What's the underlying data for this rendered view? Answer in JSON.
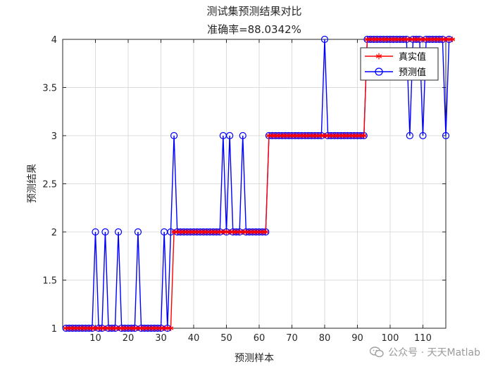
{
  "chart_data": {
    "type": "line",
    "title": "测试集预测结果对比",
    "subtitle": "准确率=88.0342%",
    "xlabel": "预测样本",
    "ylabel": "预测结果",
    "xlim": [
      0,
      117
    ],
    "ylim": [
      1,
      4
    ],
    "x_ticks": [
      10,
      20,
      30,
      40,
      50,
      60,
      70,
      80,
      90,
      100,
      110
    ],
    "y_ticks": [
      1,
      1.5,
      2,
      2.5,
      3,
      3.5,
      4
    ],
    "y_tick_labels": [
      "1",
      "1.5",
      "2",
      "2.5",
      "3",
      "3.5",
      "4"
    ],
    "grid": true,
    "legend_position": "top-right",
    "series": [
      {
        "name": "真实值",
        "color": "#ff0000",
        "marker": "asterisk",
        "values": [
          1,
          1,
          1,
          1,
          1,
          1,
          1,
          1,
          1,
          1,
          1,
          1,
          1,
          1,
          1,
          1,
          1,
          1,
          1,
          1,
          1,
          1,
          1,
          1,
          1,
          1,
          1,
          1,
          1,
          1,
          1,
          1,
          1,
          2,
          2,
          2,
          2,
          2,
          2,
          2,
          2,
          2,
          2,
          2,
          2,
          2,
          2,
          2,
          2,
          2,
          2,
          2,
          2,
          2,
          2,
          2,
          2,
          2,
          2,
          2,
          2,
          2,
          3,
          3,
          3,
          3,
          3,
          3,
          3,
          3,
          3,
          3,
          3,
          3,
          3,
          3,
          3,
          3,
          3,
          3,
          3,
          3,
          3,
          3,
          3,
          3,
          3,
          3,
          3,
          3,
          3,
          3,
          4,
          4,
          4,
          4,
          4,
          4,
          4,
          4,
          4,
          4,
          4,
          4,
          4,
          4,
          4,
          4,
          4,
          4,
          4,
          4,
          4,
          4,
          4,
          4,
          4,
          4,
          4
        ]
      },
      {
        "name": "预测值",
        "color": "#0000ff",
        "marker": "circle",
        "values": [
          1,
          1,
          1,
          1,
          1,
          1,
          1,
          1,
          1,
          2,
          1,
          1,
          2,
          1,
          1,
          1,
          2,
          1,
          1,
          1,
          1,
          1,
          2,
          1,
          1,
          1,
          1,
          1,
          1,
          1,
          2,
          1,
          2,
          3,
          2,
          2,
          2,
          2,
          2,
          2,
          2,
          2,
          2,
          2,
          2,
          2,
          2,
          2,
          3,
          2,
          3,
          2,
          2,
          2,
          3,
          2,
          2,
          2,
          2,
          2,
          2,
          2,
          3,
          3,
          3,
          3,
          3,
          3,
          3,
          3,
          3,
          3,
          3,
          3,
          3,
          3,
          3,
          3,
          3,
          4,
          3,
          3,
          3,
          3,
          3,
          3,
          3,
          3,
          3,
          3,
          3,
          3,
          4,
          4,
          4,
          4,
          4,
          4,
          4,
          4,
          4,
          4,
          4,
          4,
          4,
          3,
          4,
          4,
          4,
          3,
          4,
          4,
          4,
          4,
          4,
          4,
          3,
          4
        ]
      }
    ]
  },
  "watermark": {
    "text": "公众号 · 天天Matlab",
    "icon": "wechat-icon"
  }
}
